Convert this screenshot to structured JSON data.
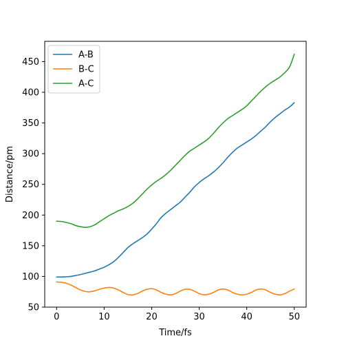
{
  "chart_data": {
    "type": "line",
    "title": "",
    "xlabel": "Time/fs",
    "ylabel": "Distance/pm",
    "xlim": [
      -2.5,
      52.5
    ],
    "ylim": [
      50,
      483
    ],
    "xticks": [
      0,
      10,
      20,
      30,
      40,
      50
    ],
    "yticks": [
      50,
      100,
      150,
      200,
      250,
      300,
      350,
      400,
      450
    ],
    "grid": false,
    "legend_position": "top-left",
    "series": [
      {
        "name": "A-B",
        "color": "#1f77b4",
        "x": [
          0,
          1,
          2,
          3,
          4,
          5,
          6,
          7,
          8,
          9,
          10,
          11,
          12,
          13,
          14,
          15,
          16,
          17,
          18,
          19,
          20,
          21,
          22,
          23,
          24,
          25,
          26,
          27,
          28,
          29,
          30,
          31,
          32,
          33,
          34,
          35,
          36,
          37,
          38,
          39,
          40,
          41,
          42,
          43,
          44,
          45,
          46,
          47,
          48,
          49,
          50
        ],
        "y": [
          99,
          99,
          99.5,
          100,
          101.5,
          103,
          105,
          107,
          109,
          112,
          115,
          119,
          124,
          131,
          139,
          147,
          153,
          158,
          163,
          169,
          177,
          186,
          196,
          203,
          209,
          215,
          221,
          229,
          237,
          246,
          253,
          259,
          264,
          270,
          277,
          285,
          294,
          302,
          309,
          314,
          319,
          324,
          330,
          337,
          344,
          352,
          359,
          365,
          371,
          376,
          383
        ]
      },
      {
        "name": "B-C",
        "color": "#ff7f0e",
        "x": [
          0,
          1,
          2,
          3,
          4,
          5,
          6,
          7,
          8,
          9,
          10,
          11,
          12,
          13,
          14,
          15,
          16,
          17,
          18,
          19,
          20,
          21,
          22,
          23,
          24,
          25,
          26,
          27,
          28,
          29,
          30,
          31,
          32,
          33,
          34,
          35,
          36,
          37,
          38,
          39,
          40,
          41,
          42,
          43,
          44,
          45,
          46,
          47,
          48,
          49,
          50
        ],
        "y": [
          91,
          90.5,
          89,
          86,
          82,
          78,
          75.5,
          75,
          76.5,
          79,
          81,
          82,
          81,
          78,
          74,
          70.5,
          70,
          72,
          76,
          79,
          80,
          78,
          74,
          71,
          70,
          72,
          76,
          79,
          79,
          76,
          72,
          70,
          71,
          74,
          78,
          79.5,
          78,
          74,
          71,
          70,
          71,
          74,
          78,
          79.5,
          78,
          74,
          71,
          70,
          72,
          76,
          79.5
        ]
      },
      {
        "name": "A-C",
        "color": "#2ca02c",
        "x": [
          0,
          1,
          2,
          3,
          4,
          5,
          6,
          7,
          8,
          9,
          10,
          11,
          12,
          13,
          14,
          15,
          16,
          17,
          18,
          19,
          20,
          21,
          22,
          23,
          24,
          25,
          26,
          27,
          28,
          29,
          30,
          31,
          32,
          33,
          34,
          35,
          36,
          37,
          38,
          39,
          40,
          41,
          42,
          43,
          44,
          45,
          46,
          47,
          48,
          49,
          50
        ],
        "y": [
          190,
          189.5,
          188,
          186,
          183,
          181,
          180,
          181,
          184,
          189,
          194,
          199,
          203,
          207,
          210,
          214,
          219,
          226,
          234,
          242,
          249,
          255,
          260,
          266,
          273,
          281,
          289,
          297,
          304,
          309,
          314,
          319,
          325,
          333,
          342,
          350,
          357,
          362,
          367,
          372,
          378,
          386,
          394,
          402,
          409,
          415,
          420,
          425,
          432,
          441,
          462
        ]
      }
    ]
  }
}
